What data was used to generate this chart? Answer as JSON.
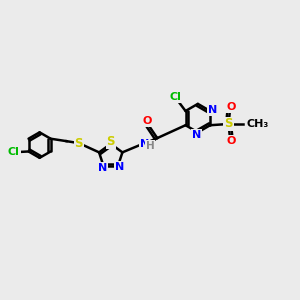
{
  "background_color": "#ebebeb",
  "atom_colors": {
    "N": "#0000ff",
    "O": "#ff0000",
    "S": "#cccc00",
    "Cl": "#00bb00",
    "C": "#000000",
    "H": "#888888"
  },
  "bond_color": "#000000",
  "bond_width": 1.8,
  "figsize": [
    3.0,
    3.0
  ],
  "dpi": 100
}
